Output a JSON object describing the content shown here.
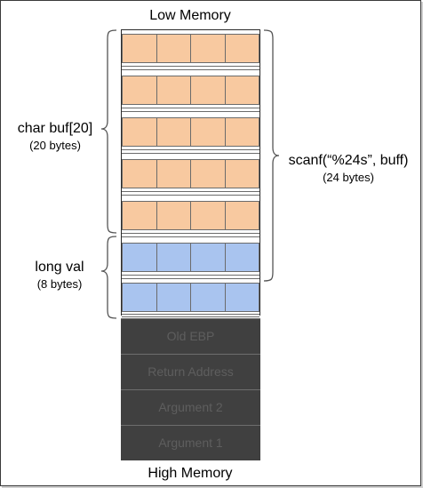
{
  "top_label": "Low Memory",
  "bottom_label": "High Memory",
  "colors": {
    "buf": "#f8c9a0",
    "val": "#a9c4ef",
    "dark": "#404040"
  },
  "annotations": {
    "buf": {
      "name": "char buf[20]",
      "size": "(20 bytes)"
    },
    "val": {
      "name": "long val",
      "size": "(8 bytes)"
    },
    "scanf": {
      "name": "scanf(“%24s”, buff)",
      "size": "(24 bytes)"
    }
  },
  "stack_slots": [
    {
      "label": "Old EBP"
    },
    {
      "label": "Return Address"
    },
    {
      "label": "Argument 2"
    },
    {
      "label": "Argument 1"
    }
  ]
}
